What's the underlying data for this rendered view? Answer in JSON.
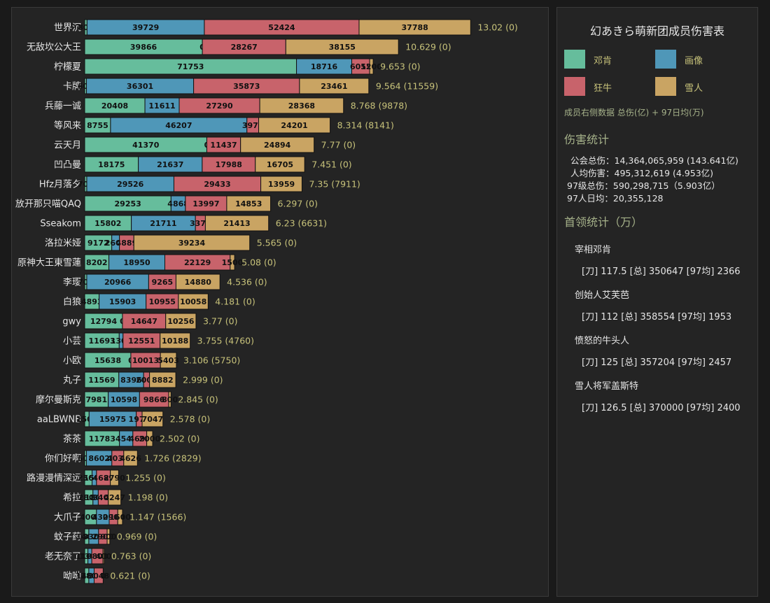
{
  "title": "幻あきら萌新团成员伤害表",
  "legend": [
    {
      "name": "邓肯",
      "color": "#66bd9c"
    },
    {
      "name": "画像",
      "color": "#4f97b8"
    },
    {
      "name": "狂牛",
      "color": "#c8636b"
    },
    {
      "name": "雪人",
      "color": "#c9a463"
    }
  ],
  "note": "成员右侧数据 总伤(亿) + 97日均(万)",
  "damage_stats": {
    "title": "伤害统计",
    "lines": [
      "公会总伤：14,364,065,959 (143.641亿)",
      "人均伤害：495,312,619 (4.953亿)",
      "97级总伤：590,298,715（5.903亿）",
      "97人日均：20,355,128"
    ]
  },
  "boss_stats": {
    "title": "首领统计（万）",
    "bosses": [
      {
        "name": "宰相邓肯",
        "stats": "[刀] 117.5 [总] 350647 [97均] 2366"
      },
      {
        "name": "创始人艾芙芭",
        "stats": "[刀] 112 [总] 358554 [97均] 1953"
      },
      {
        "name": "愤怒的牛头人",
        "stats": "[刀] 125 [总] 357204 [97均] 2457"
      },
      {
        "name": "雪人将军盖斯特",
        "stats": "[刀] 126.5 [总] 370000 [97均] 2400"
      }
    ]
  },
  "colors": {
    "background": "#1a1a1a",
    "panel": "#242424",
    "label_text": "#e6e6e6",
    "total_text": "#c7c27a",
    "accent": "#a6b28a"
  },
  "chart_data": {
    "type": "bar",
    "orientation": "horizontal",
    "stacked": true,
    "title": "幻あきら萌新团成员伤害表",
    "categories": [
      "世界沉",
      "无敌坎公大王",
      "柠檬夏",
      "卡牌",
      "兵藤一诚",
      "等风来",
      "云天月",
      "凹凸曼",
      "Hfz月落夕",
      "放开那只喵QAQ",
      "Sseakom",
      "洛拉米娅",
      "原神大王東雪蓮",
      "李璎",
      "白狼",
      "gwy",
      "小芸",
      "小欧",
      "丸子",
      "摩尔曼斯克",
      "aaLBWNB",
      "茶茶",
      "你们好啊",
      "路漫漫情深远",
      "希拉",
      "大爪子",
      "蚊子药",
      "老无奈了",
      "呦呦"
    ],
    "series": [
      {
        "name": "邓肯",
        "values": [
          800,
          39866,
          71753,
          600,
          20408,
          8755,
          41370,
          18175,
          700,
          29253,
          15802,
          9172,
          8202,
          700,
          4893,
          12794,
          11693,
          15638,
          11569,
          7981,
          1500,
          11783,
          600,
          2500,
          2800,
          4000,
          1400,
          1100,
          1400
        ]
      },
      {
        "name": "画像",
        "values": [
          39729,
          0,
          18716,
          36301,
          11611,
          46207,
          0,
          21637,
          29526,
          4868,
          21711,
          2600,
          18950,
          20966,
          15903,
          0,
          1300,
          0,
          8396,
          10598,
          15975,
          4540,
          8602,
          1500,
          1800,
          4300,
          3300,
          1300,
          1800
        ]
      },
      {
        "name": "狂牛",
        "values": [
          52424,
          28267,
          6055,
          35873,
          27290,
          3975,
          11437,
          17988,
          29433,
          13997,
          3370,
          4889,
          22129,
          9265,
          10955,
          14647,
          12551,
          10013,
          2000,
          9866,
          1977,
          4692,
          4031,
          4689,
          3400,
          2900,
          2900,
          3800,
          3048
        ]
      },
      {
        "name": "雪人",
        "values": [
          37788,
          38155,
          1200,
          23461,
          28368,
          24201,
          24894,
          16705,
          13959,
          14853,
          21413,
          39234,
          1500,
          14880,
          10058,
          10256,
          10188,
          5403,
          8882,
          800,
          7047,
          2000,
          4626,
          2790,
          4247,
          1600,
          900,
          400,
          0
        ]
      }
    ],
    "total_labels": [
      "13.02 (0)",
      "10.629 (0)",
      "9.653 (0)",
      "9.564 (11559)",
      "8.768 (9878)",
      "8.314 (8141)",
      "7.77 (0)",
      "7.451 (0)",
      "7.35 (7911)",
      "6.297 (0)",
      "6.23 (6631)",
      "5.565 (0)",
      "5.08 (0)",
      "4.536 (0)",
      "4.181 (0)",
      "3.77 (0)",
      "3.755 (4760)",
      "3.106 (5750)",
      "2.999 (0)",
      "2.845 (0)",
      "2.578 (0)",
      "2.502 (0)",
      "1.726 (2829)",
      "1.255 (0)",
      "1.198 (0)",
      "1.147 (1566)",
      "0.969 (0)",
      "0.763 (0)",
      "0.621 (0)"
    ]
  }
}
